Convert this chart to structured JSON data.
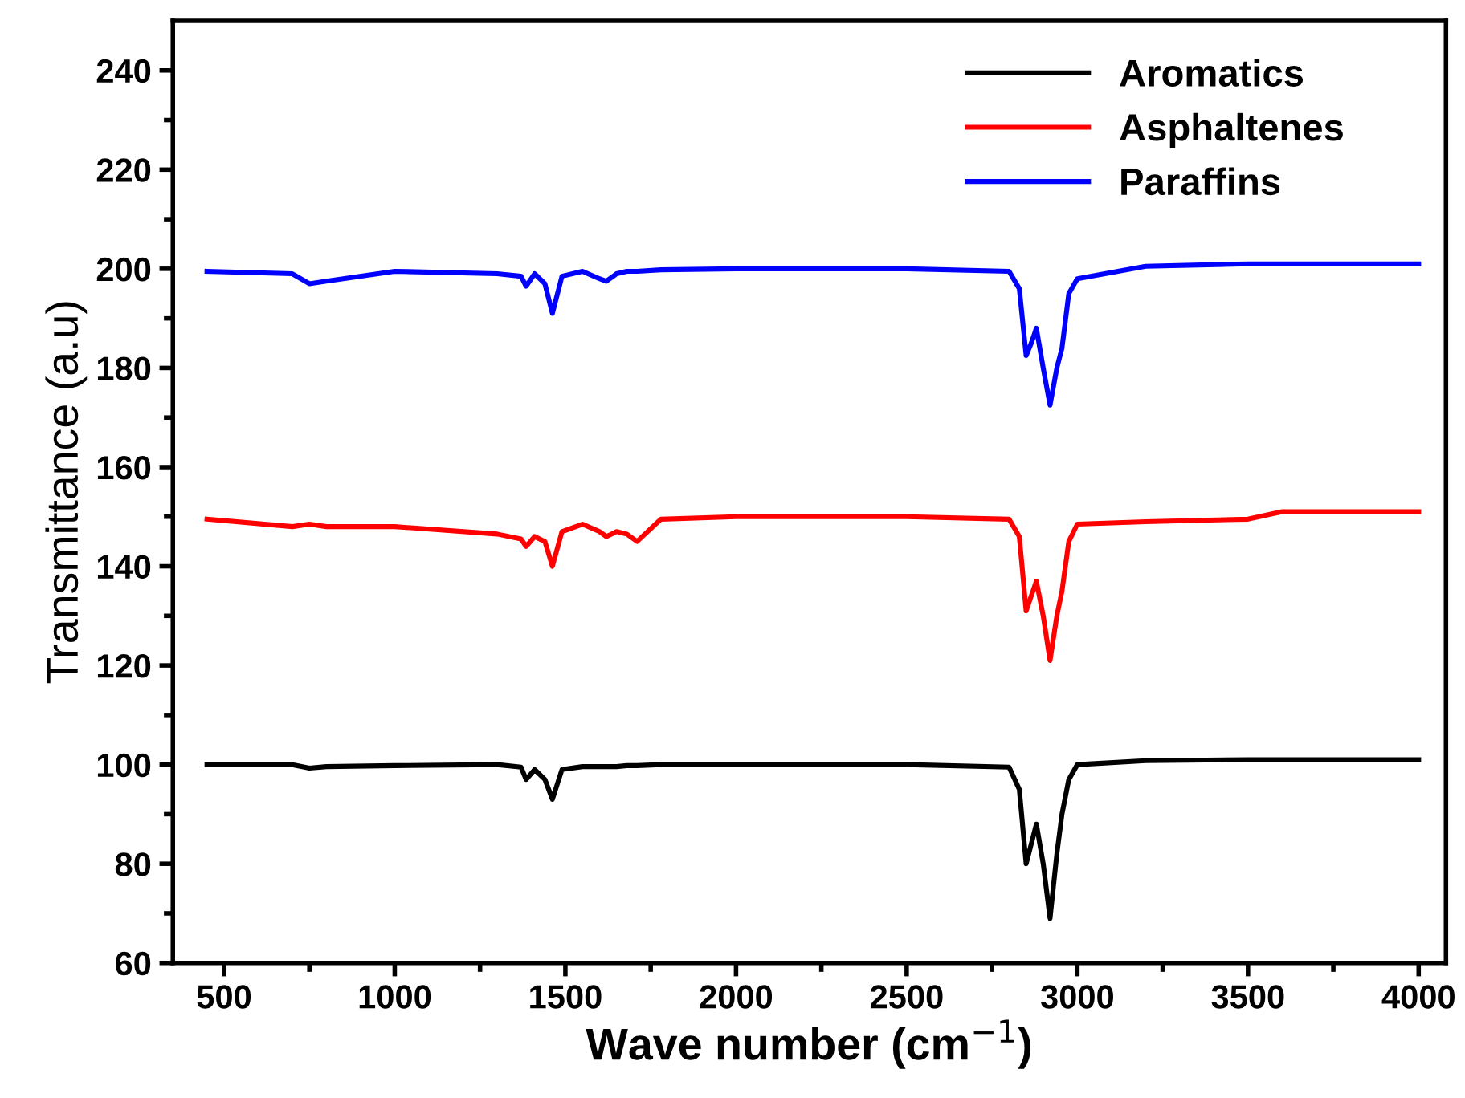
{
  "chart_data": {
    "type": "line",
    "xlabel": "Wave number (cm$^{−1}$)",
    "ylabel": "Transmittance (a.u)",
    "xlim": [
      350,
      4080
    ],
    "ylim": [
      60,
      250
    ],
    "xticks": [
      500,
      {
        "value": 750,
        "label": null
      },
      1000,
      {
        "value": 1250,
        "label": null
      },
      1500,
      {
        "value": 1750,
        "label": null
      },
      2000,
      {
        "value": 2250,
        "label": null
      },
      2500,
      {
        "value": 2750,
        "label": null
      },
      3000,
      {
        "value": 3250,
        "label": null
      },
      3500,
      {
        "value": 3750,
        "label": null
      },
      4000
    ],
    "yticks": [
      60,
      {
        "value": 70,
        "label": null
      },
      80,
      {
        "value": 90,
        "label": null
      },
      100,
      {
        "value": 110,
        "label": null
      },
      120,
      {
        "value": 130,
        "label": null
      },
      140,
      {
        "value": 150,
        "label": null
      },
      160,
      {
        "value": 170,
        "label": null
      },
      180,
      {
        "value": 190,
        "label": null
      },
      200,
      {
        "value": 210,
        "label": null
      },
      220,
      {
        "value": 230,
        "label": null
      },
      240
    ],
    "grid": false,
    "legend": "top right",
    "x": [
      450,
      700,
      750,
      800,
      1000,
      1300,
      1370,
      1385,
      1410,
      1440,
      1462,
      1490,
      1550,
      1600,
      1620,
      1650,
      1680,
      1710,
      1780,
      2000,
      2500,
      2800,
      2830,
      2850,
      2865,
      2880,
      2900,
      2920,
      2940,
      2955,
      2975,
      3000,
      3200,
      3500,
      3600,
      4000
    ],
    "series": [
      {
        "name": "Aromatics",
        "color": "#000000",
        "values": [
          100,
          100,
          99.3,
          99.6,
          99.8,
          100,
          99.5,
          97,
          99,
          97,
          93,
          99,
          99.6,
          99.6,
          99.6,
          99.6,
          99.8,
          99.8,
          100,
          100,
          100,
          99.5,
          95,
          80,
          84,
          88,
          80,
          69,
          82,
          90,
          97,
          100,
          100.8,
          101,
          101,
          101
        ]
      },
      {
        "name": "Asphaltenes",
        "color": "#ff0000",
        "values": [
          149.5,
          148,
          148.5,
          148,
          148,
          146.5,
          145.5,
          144,
          146,
          145,
          140,
          147,
          148.5,
          147,
          146,
          147,
          146.5,
          145,
          149.5,
          150,
          150,
          149.5,
          146,
          131,
          134,
          137,
          130,
          121,
          130,
          135,
          145,
          148.5,
          149,
          149.5,
          151,
          151
        ]
      },
      {
        "name": "Paraffins",
        "color": "#0000ff",
        "values": [
          199.5,
          199,
          197,
          197.5,
          199.5,
          199,
          198.5,
          196.5,
          199,
          197,
          191,
          198.5,
          199.5,
          198,
          197.5,
          199,
          199.5,
          199.5,
          199.8,
          200,
          200,
          199.5,
          196,
          182.5,
          185,
          188,
          180,
          172.5,
          180,
          184,
          195,
          198,
          200.5,
          201,
          201,
          201
        ]
      }
    ]
  }
}
